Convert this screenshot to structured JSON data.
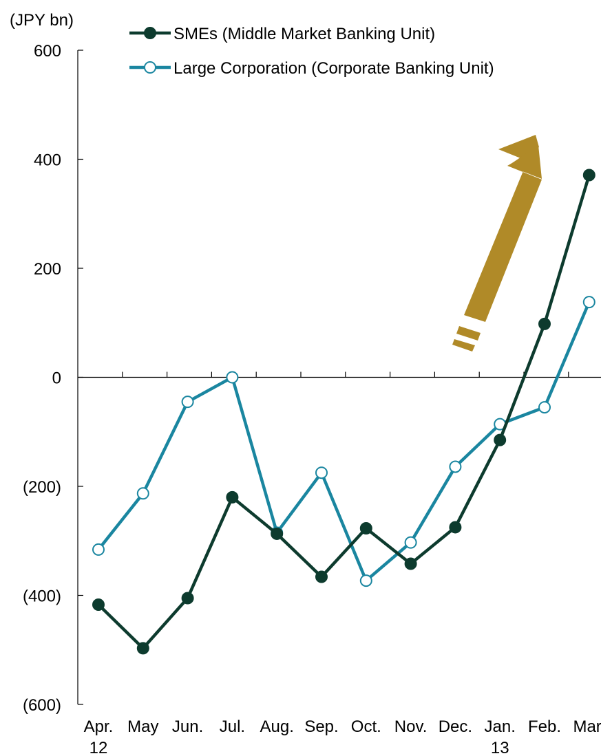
{
  "chart_data": {
    "type": "line",
    "ylabel": "(JPY bn)",
    "xlabel": "",
    "title": "",
    "categories": [
      "Apr.",
      "May",
      "Jun.",
      "Jul.",
      "Aug.",
      "Sep.",
      "Oct.",
      "Nov.",
      "Dec.",
      "Jan.",
      "Feb.",
      "Mar."
    ],
    "year_labels": [
      {
        "index": 0,
        "label": "12"
      },
      {
        "index": 9,
        "label": "13"
      }
    ],
    "ylim": [
      -600,
      600
    ],
    "yticks": [
      600,
      400,
      200,
      0,
      -200,
      -400,
      -600
    ],
    "ytick_labels": [
      "600",
      "400",
      "200",
      "0",
      "(200)",
      "(400)",
      "(600)"
    ],
    "grid": false,
    "legend_position": "top",
    "series": [
      {
        "name": "SMEs (Middle Market Banking Unit)",
        "color": "#0d3b2e",
        "marker": "filled-circle",
        "values": [
          -417,
          -497,
          -405,
          -220,
          -287,
          -366,
          -277,
          -342,
          -275,
          -115,
          98,
          371
        ]
      },
      {
        "name": "Large Corporation (Corporate Banking Unit)",
        "color": "#1a86a0",
        "marker": "hollow-circle",
        "values": [
          -316,
          -213,
          -45,
          0,
          -285,
          -175,
          -373,
          -303,
          -164,
          -86,
          -55,
          138
        ]
      }
    ],
    "annotation": {
      "type": "upward-arrow",
      "icon": "trend-up-arrow-icon",
      "color": "#b08a28"
    }
  }
}
